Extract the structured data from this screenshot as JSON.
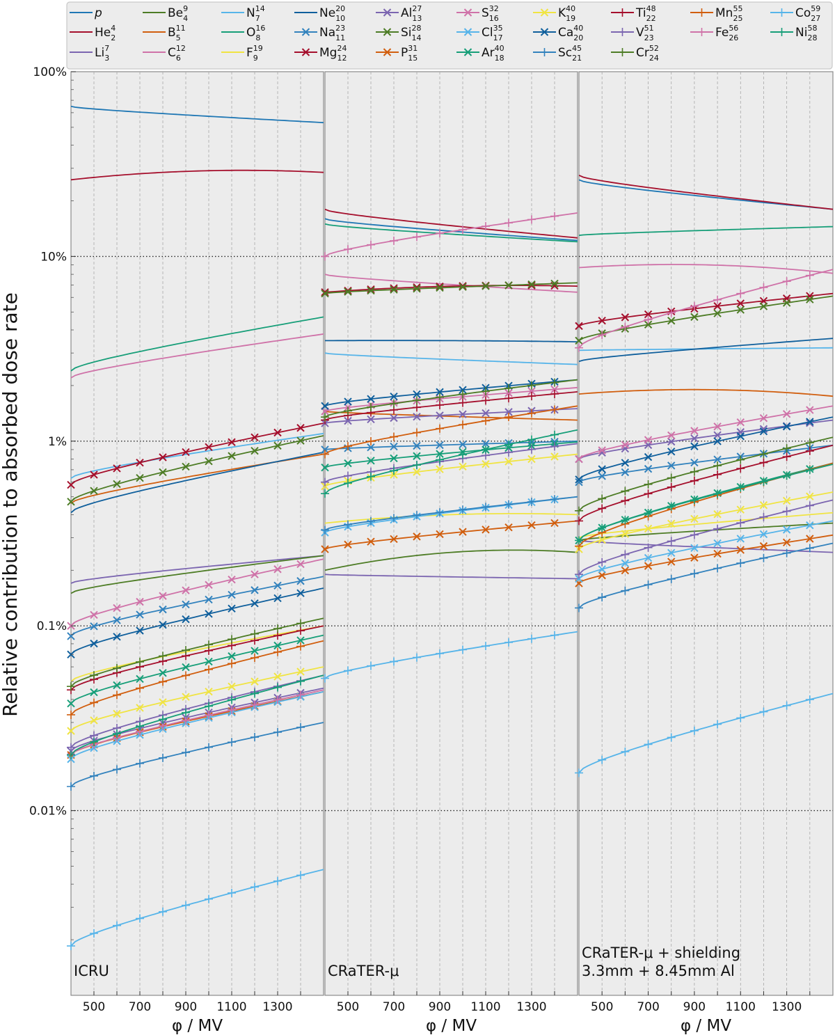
{
  "chart_data": {
    "type": "line",
    "ylabel": "Relative contribution to absorbed dose rate",
    "xlabel": "φ / MV",
    "yscale": "log",
    "ylim": [
      0.001,
      100
    ],
    "xlim": [
      400,
      1500
    ],
    "xticks": [
      500,
      700,
      900,
      1100,
      1300
    ],
    "xtick_labels": [
      "500",
      "700",
      "900",
      "1100",
      "1300"
    ],
    "yticks": [
      0.01,
      0.1,
      1,
      10,
      100
    ],
    "ytick_labels": [
      "0.01%",
      "0.1%",
      "1%",
      "10%",
      "100%"
    ],
    "grid": "vertical dashed at 100 MV steps; horizontal dotted at decades",
    "legend_placement": "top",
    "legend_columns": [
      [
        "p",
        "He",
        "Li"
      ],
      [
        "Be",
        "B",
        "C"
      ],
      [
        "N",
        "O",
        "F"
      ],
      [
        "Ne",
        "Na",
        "Mg"
      ],
      [
        "Al",
        "Si",
        "P"
      ],
      [
        "S",
        "Cl",
        "Ar"
      ],
      [
        "K",
        "Ca",
        "Sc"
      ],
      [
        "Ti",
        "V",
        "Cr"
      ],
      [
        "Mn",
        "Fe"
      ],
      [
        "Co",
        "Ni"
      ]
    ],
    "series": [
      {
        "name": "p",
        "sym": "p",
        "A": "",
        "Z": "",
        "color": "#1f77b4",
        "marker": "none",
        "italic": true
      },
      {
        "name": "He",
        "sym": "He",
        "A": "4",
        "Z": "2",
        "color": "#a50f2c",
        "marker": "none"
      },
      {
        "name": "Li",
        "sym": "Li",
        "A": "7",
        "Z": "3",
        "color": "#7b65b0",
        "marker": "none"
      },
      {
        "name": "Be",
        "sym": "Be",
        "A": "9",
        "Z": "4",
        "color": "#4d7c25",
        "marker": "none"
      },
      {
        "name": "B",
        "sym": "B",
        "A": "11",
        "Z": "5",
        "color": "#d15e0e",
        "marker": "none"
      },
      {
        "name": "C",
        "sym": "C",
        "A": "12",
        "Z": "6",
        "color": "#cf72a8",
        "marker": "none"
      },
      {
        "name": "N",
        "sym": "N",
        "A": "14",
        "Z": "7",
        "color": "#56b4e9",
        "marker": "none"
      },
      {
        "name": "O",
        "sym": "O",
        "A": "16",
        "Z": "8",
        "color": "#169e78",
        "marker": "none"
      },
      {
        "name": "F",
        "sym": "F",
        "A": "19",
        "Z": "9",
        "color": "#f0e442",
        "marker": "none"
      },
      {
        "name": "Ne",
        "sym": "Ne",
        "A": "20",
        "Z": "10",
        "color": "#0f5f9c",
        "marker": "none"
      },
      {
        "name": "Na",
        "sym": "Na",
        "A": "23",
        "Z": "11",
        "color": "#3282bd",
        "marker": "x"
      },
      {
        "name": "Mg",
        "sym": "Mg",
        "A": "24",
        "Z": "12",
        "color": "#a50f2c",
        "marker": "x"
      },
      {
        "name": "Al",
        "sym": "Al",
        "A": "27",
        "Z": "13",
        "color": "#7b65b0",
        "marker": "x"
      },
      {
        "name": "Si",
        "sym": "Si",
        "A": "28",
        "Z": "14",
        "color": "#4d7c25",
        "marker": "x"
      },
      {
        "name": "P",
        "sym": "P",
        "A": "31",
        "Z": "15",
        "color": "#d15e0e",
        "marker": "x"
      },
      {
        "name": "S",
        "sym": "S",
        "A": "32",
        "Z": "16",
        "color": "#cf72a8",
        "marker": "x"
      },
      {
        "name": "Cl",
        "sym": "Cl",
        "A": "35",
        "Z": "17",
        "color": "#56b4e9",
        "marker": "x"
      },
      {
        "name": "Ar",
        "sym": "Ar",
        "A": "40",
        "Z": "18",
        "color": "#169e78",
        "marker": "x"
      },
      {
        "name": "K",
        "sym": "K",
        "A": "40",
        "Z": "19",
        "color": "#f0e442",
        "marker": "x"
      },
      {
        "name": "Ca",
        "sym": "Ca",
        "A": "40",
        "Z": "20",
        "color": "#0f5f9c",
        "marker": "x"
      },
      {
        "name": "Sc",
        "sym": "Sc",
        "A": "45",
        "Z": "21",
        "color": "#3282bd",
        "marker": "+"
      },
      {
        "name": "Ti",
        "sym": "Ti",
        "A": "48",
        "Z": "22",
        "color": "#a50f2c",
        "marker": "+"
      },
      {
        "name": "V",
        "sym": "V",
        "A": "51",
        "Z": "23",
        "color": "#7b65b0",
        "marker": "+"
      },
      {
        "name": "Cr",
        "sym": "Cr",
        "A": "52",
        "Z": "24",
        "color": "#4d7c25",
        "marker": "+"
      },
      {
        "name": "Mn",
        "sym": "Mn",
        "A": "55",
        "Z": "25",
        "color": "#d15e0e",
        "marker": "+"
      },
      {
        "name": "Fe",
        "sym": "Fe",
        "A": "56",
        "Z": "26",
        "color": "#cf72a8",
        "marker": "+"
      },
      {
        "name": "Co",
        "sym": "Co",
        "A": "59",
        "Z": "27",
        "color": "#56b4e9",
        "marker": "+"
      },
      {
        "name": "Ni",
        "sym": "Ni",
        "A": "58",
        "Z": "28",
        "color": "#169e78",
        "marker": "+"
      }
    ],
    "panels": [
      {
        "label_lines": [
          "ICRU"
        ],
        "x": [
          400,
          1500
        ],
        "curves": {
          "p": [
            65,
            53
          ],
          "He": [
            26,
            29,
            28.5
          ],
          "Li": [
            0.17,
            0.24
          ],
          "Be": [
            0.15,
            0.24
          ],
          "B": [
            0.46,
            0.85
          ],
          "C": [
            2.2,
            3.8
          ],
          "N": [
            0.63,
            1.1
          ],
          "O": [
            2.4,
            4.7
          ],
          "F": [
            0.05,
            0.1
          ],
          "Ne": [
            0.41,
            0.87
          ],
          "Na": [
            0.088,
            0.185
          ],
          "Mg": [
            0.58,
            1.25
          ],
          "Al": [
            0.021,
            0.046
          ],
          "Si": [
            0.47,
            1.07
          ],
          "P": [
            0.02,
            0.044
          ],
          "S": [
            0.1,
            0.23
          ],
          "Cl": [
            0.019,
            0.044
          ],
          "Ar": [
            0.038,
            0.089
          ],
          "K": [
            0.027,
            0.06
          ],
          "Ca": [
            0.07,
            0.16
          ],
          "Sc": [
            0.0135,
            0.03
          ],
          "Ti": [
            0.045,
            0.1
          ],
          "V": [
            0.022,
            0.054
          ],
          "Cr": [
            0.047,
            0.11
          ],
          "Mn": [
            0.033,
            0.083
          ],
          "Fe": [
            0.02,
            0.045
          ],
          "Co": [
            0.00185,
            0.0048
          ],
          "Ni": [
            0.02,
            0.054
          ]
        }
      },
      {
        "label_lines": [
          "CRaTER-μ"
        ],
        "x": [
          400,
          1500
        ],
        "curves": {
          "p": [
            16,
            12.2
          ],
          "He": [
            18,
            12.6
          ],
          "Li": [
            0.19,
            0.18
          ],
          "Be": [
            0.2,
            0.25,
            0.25
          ],
          "B": [
            1.45,
            1.3
          ],
          "C": [
            8,
            6.4
          ],
          "N": [
            3.0,
            2.6
          ],
          "O": [
            15,
            12
          ],
          "F": [
            0.36,
            0.4,
            0.4
          ],
          "Ne": [
            3.5,
            3.5,
            3.45
          ],
          "Na": [
            0.9,
            1.0
          ],
          "Mg": [
            6.4,
            6.9,
            6.9
          ],
          "Al": [
            1.25,
            1.5
          ],
          "Si": [
            6.3,
            7.2
          ],
          "P": [
            0.26,
            0.37
          ],
          "S": [
            1.45,
            1.95
          ],
          "Cl": [
            0.32,
            0.5
          ],
          "Ar": [
            0.72,
            0.99
          ],
          "K": [
            0.57,
            0.85
          ],
          "Ca": [
            1.55,
            2.15
          ],
          "Sc": [
            0.33,
            0.5
          ],
          "Ti": [
            1.3,
            1.85
          ],
          "V": [
            0.6,
            0.97
          ],
          "Cr": [
            1.35,
            2.15
          ],
          "Mn": [
            0.85,
            1.55
          ],
          "Fe": [
            10,
            17.2
          ],
          "Co": [
            0.052,
            0.093
          ],
          "Ni": [
            0.52,
            1.15
          ]
        }
      },
      {
        "label_lines": [
          "CRaTER-μ + shielding",
          "3.3mm + 8.45mm Al"
        ],
        "x": [
          400,
          1500
        ],
        "curves": {
          "p": [
            26,
            18
          ],
          "He": [
            27.5,
            18
          ],
          "Li": [
            0.29,
            0.25
          ],
          "Be": [
            0.29,
            0.36
          ],
          "B": [
            1.8,
            1.9,
            1.75
          ],
          "C": [
            8.7,
            9,
            8.1
          ],
          "N": [
            3.1,
            3.2
          ],
          "O": [
            13,
            14.5
          ],
          "F": [
            0.3,
            0.41
          ],
          "Ne": [
            2.7,
            3.6
          ],
          "Na": [
            0.6,
            0.95
          ],
          "Mg": [
            4.2,
            6.3
          ],
          "Al": [
            0.8,
            1.3
          ],
          "Si": [
            3.5,
            6.1
          ],
          "P": [
            0.17,
            0.31
          ],
          "S": [
            0.8,
            1.55
          ],
          "Cl": [
            0.18,
            0.37
          ],
          "Ar": [
            0.29,
            0.76
          ],
          "K": [
            0.26,
            0.53
          ],
          "Ca": [
            0.62,
            1.35
          ],
          "Sc": [
            0.125,
            0.28
          ],
          "Ti": [
            0.37,
            0.95
          ],
          "V": [
            0.19,
            0.48
          ],
          "Cr": [
            0.42,
            1.05
          ],
          "Mn": [
            0.27,
            0.76
          ],
          "Fe": [
            3.2,
            8.5
          ],
          "Co": [
            0.016,
            0.043
          ],
          "Ni": [
            0.29,
            0.75
          ]
        }
      }
    ]
  }
}
